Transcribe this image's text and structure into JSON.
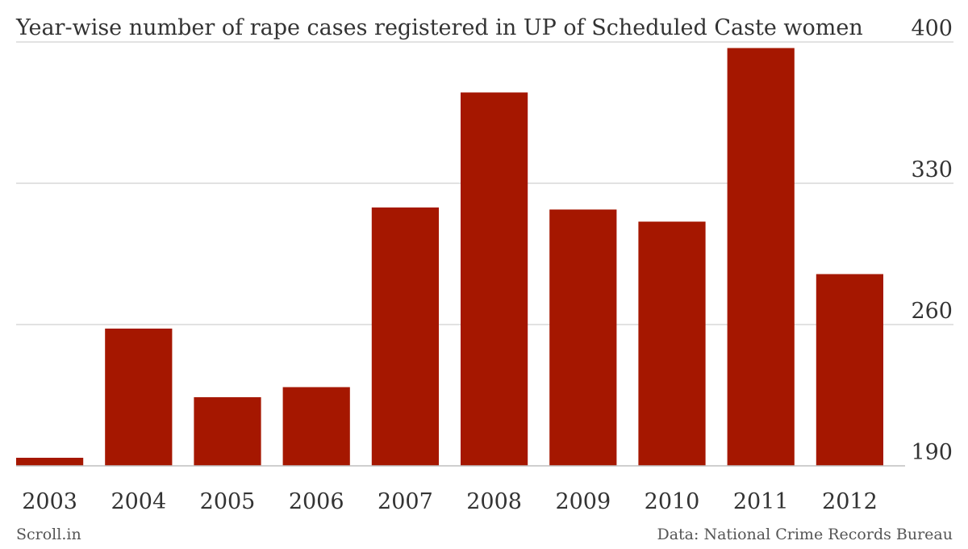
{
  "chart_data": {
    "type": "bar",
    "title": "Year-wise number of rape cases registered in UP of Scheduled Caste women",
    "categories": [
      "2003",
      "2004",
      "2005",
      "2006",
      "2007",
      "2008",
      "2009",
      "2010",
      "2011",
      "2012"
    ],
    "values": [
      194,
      258,
      224,
      229,
      318,
      375,
      317,
      311,
      397,
      285
    ],
    "ylim": [
      190,
      400
    ],
    "yticks": [
      190,
      260,
      330,
      400
    ],
    "ytick_labels": [
      "190",
      "260",
      "330",
      "400"
    ],
    "y_axis_position": "right",
    "grid": true,
    "bar_color": "#a51700",
    "xlabel": "",
    "ylabel": ""
  },
  "footer": {
    "source_left": "Scroll.in",
    "source_right": "Data: National Crime Records Bureau"
  }
}
